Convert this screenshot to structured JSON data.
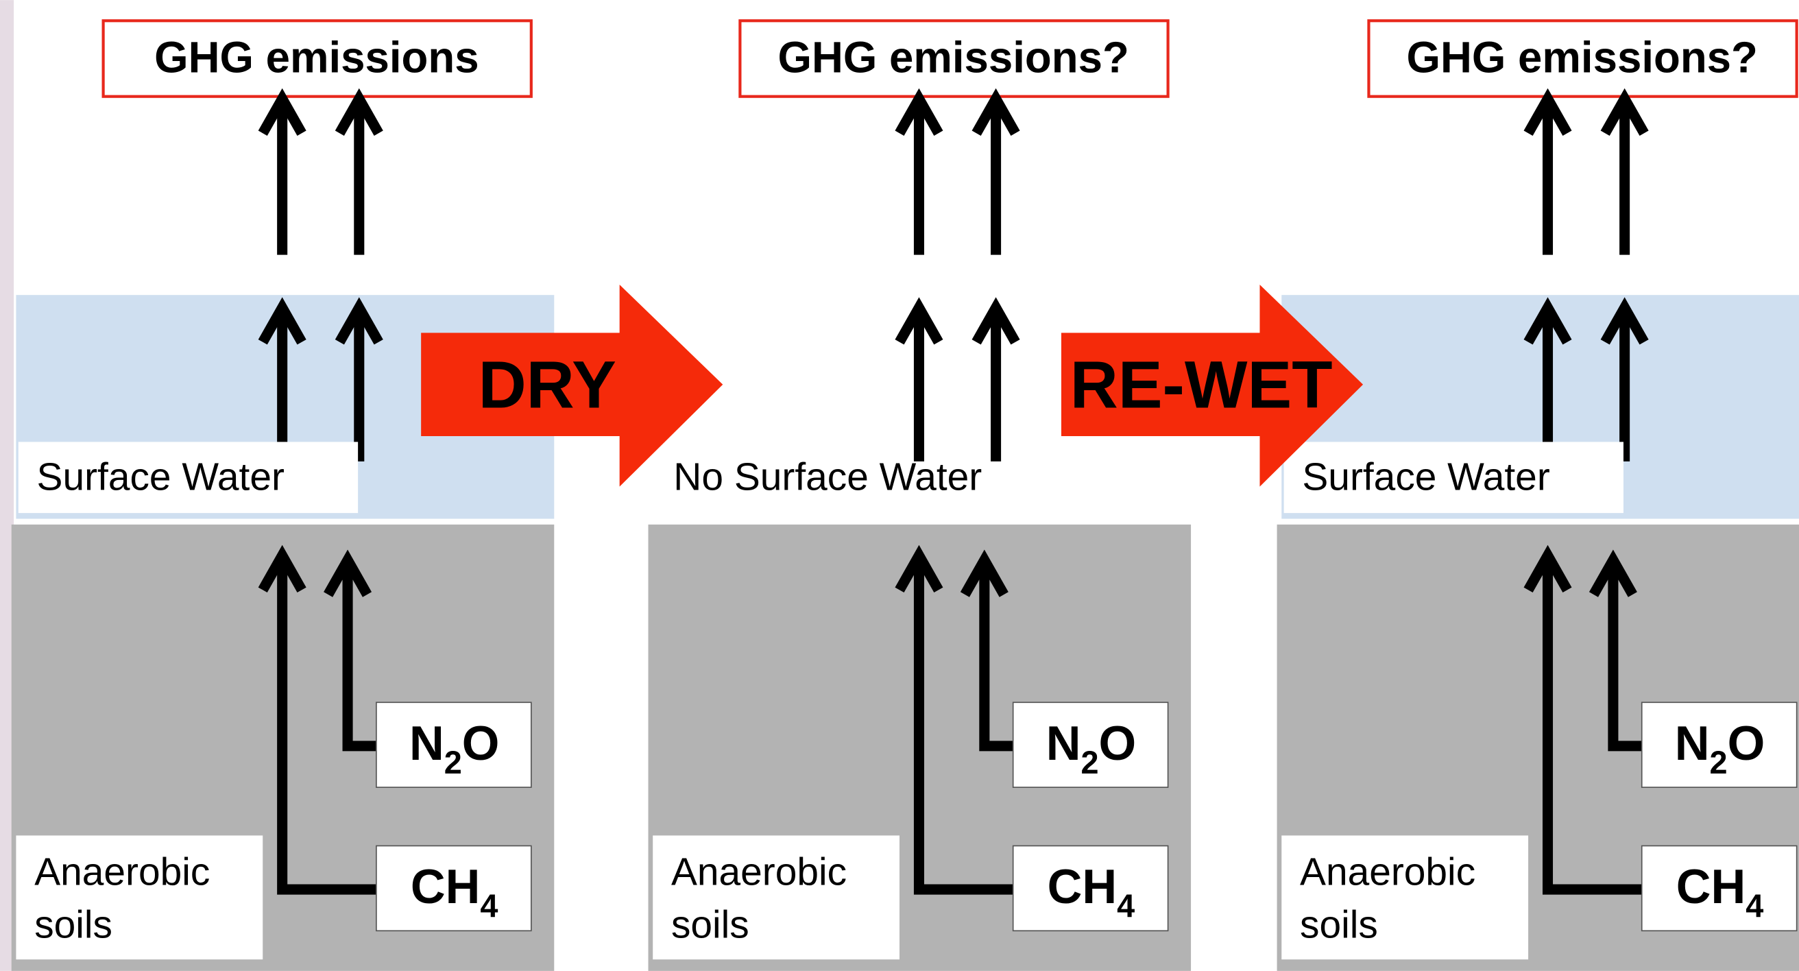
{
  "panels": [
    {
      "emissions": "GHG emissions",
      "surface_water": true,
      "water_label": "Surface Water",
      "soil_label": [
        "Anaerobic",
        "soils"
      ],
      "gases": [
        {
          "symbol": "N",
          "subscript": "2",
          "suffix": "O"
        },
        {
          "symbol": "CH",
          "subscript": "4",
          "suffix": ""
        }
      ]
    },
    {
      "emissions": "GHG emissions?",
      "surface_water": false,
      "water_label": "No Surface Water",
      "soil_label": [
        "Anaerobic",
        "soils"
      ],
      "gases": [
        {
          "symbol": "N",
          "subscript": "2",
          "suffix": "O"
        },
        {
          "symbol": "CH",
          "subscript": "4",
          "suffix": ""
        }
      ]
    },
    {
      "emissions": "GHG emissions?",
      "surface_water": true,
      "water_label": "Surface Water",
      "soil_label": [
        "Anaerobic",
        "soils"
      ],
      "gases": [
        {
          "symbol": "N",
          "subscript": "2",
          "suffix": "O"
        },
        {
          "symbol": "CH",
          "subscript": "4",
          "suffix": ""
        }
      ]
    }
  ],
  "transitions": [
    "DRY",
    "RE-WET"
  ]
}
